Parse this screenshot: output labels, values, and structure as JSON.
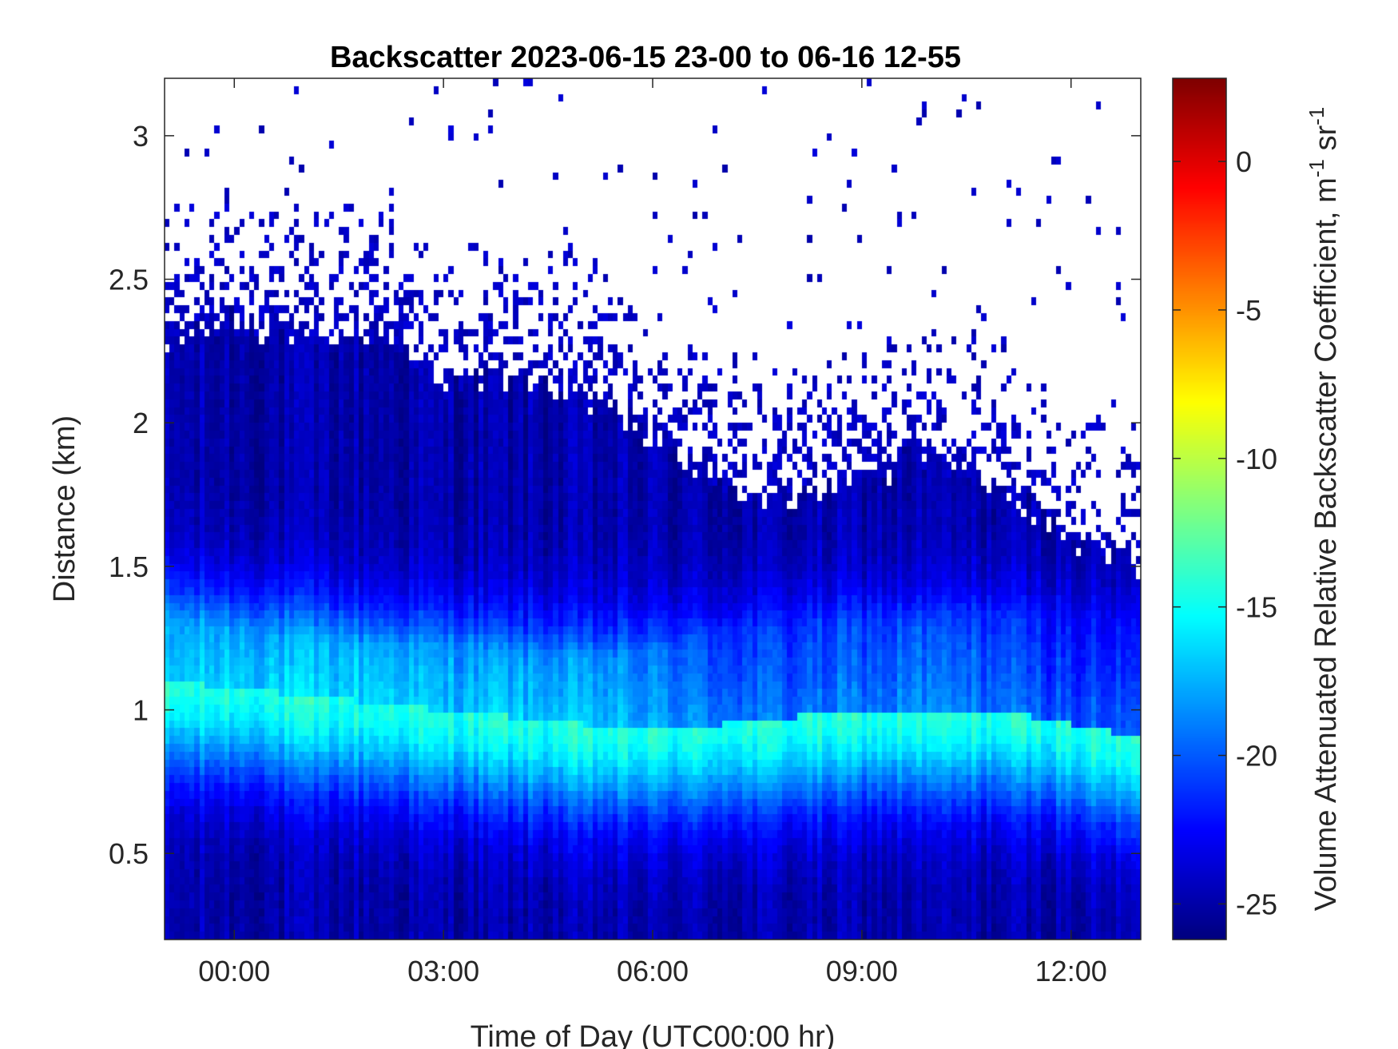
{
  "chart_data": {
    "type": "heatmap",
    "title": "Backscatter 2023-06-15 23-00 to 06-16 12-55",
    "xlabel": "Time of Day (UTC00:00 hr)",
    "ylabel": "Distance (km)",
    "colorbar_label": "Volume Attenuated Relative Backscatter Coefficient, m",
    "colorbar_unit_sup1": "-1",
    "colorbar_unit_mid": " sr",
    "colorbar_unit_sup2": "-1",
    "x_range_hours": [
      -1.0,
      13.0
    ],
    "y_range_km": [
      0.2,
      3.2
    ],
    "c_range": [
      -26.2,
      2.8
    ],
    "colormap": "jet",
    "grid": false,
    "x_ticks": [
      {
        "value": 0,
        "label": "00:00"
      },
      {
        "value": 3,
        "label": "03:00"
      },
      {
        "value": 6,
        "label": "06:00"
      },
      {
        "value": 9,
        "label": "09:00"
      },
      {
        "value": 12,
        "label": "12:00"
      }
    ],
    "y_ticks": [
      {
        "value": 0.5,
        "label": "0.5"
      },
      {
        "value": 1,
        "label": "1"
      },
      {
        "value": 1.5,
        "label": "1.5"
      },
      {
        "value": 2,
        "label": "2"
      },
      {
        "value": 2.5,
        "label": "2.5"
      },
      {
        "value": 3,
        "label": "3"
      }
    ],
    "c_ticks": [
      {
        "value": 0,
        "label": "0"
      },
      {
        "value": -5,
        "label": "-5"
      },
      {
        "value": -10,
        "label": "-10"
      },
      {
        "value": -15,
        "label": "-15"
      },
      {
        "value": -20,
        "label": "-20"
      },
      {
        "value": -25,
        "label": "-25"
      }
    ],
    "boundary_layer_top_km": {
      "hours": [
        -1,
        0,
        1,
        2,
        3,
        4,
        5,
        6,
        7,
        8,
        9,
        10,
        11,
        12,
        13
      ],
      "values": [
        2.3,
        2.35,
        2.3,
        2.3,
        2.15,
        2.15,
        2.1,
        1.95,
        1.8,
        1.75,
        1.8,
        1.9,
        1.75,
        1.6,
        1.5
      ]
    },
    "max_backscatter_layer_km": {
      "hours": [
        -1,
        1,
        3,
        5,
        7,
        9,
        11,
        13
      ],
      "values": [
        1.1,
        1.05,
        1.0,
        0.95,
        0.95,
        1.0,
        1.0,
        0.9
      ],
      "peak_value": -14.5
    },
    "surface_minimum_value": -25
  }
}
